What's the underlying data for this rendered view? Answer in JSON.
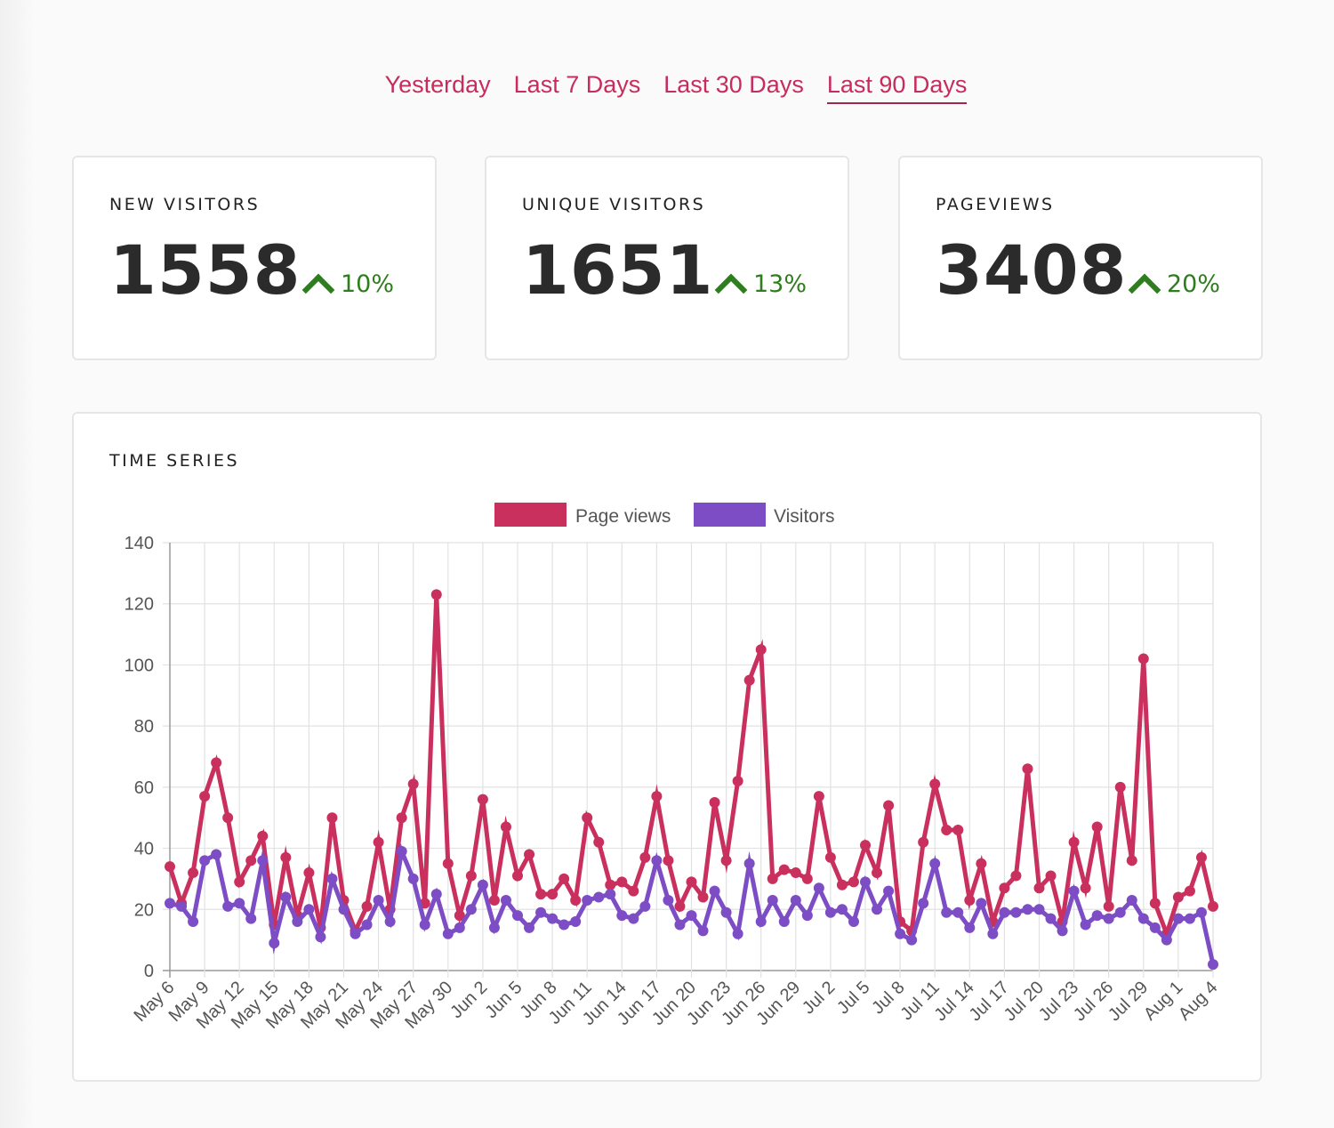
{
  "tabs": [
    {
      "label": "Yesterday",
      "active": false
    },
    {
      "label": "Last 7 Days",
      "active": false
    },
    {
      "label": "Last 30 Days",
      "active": false
    },
    {
      "label": "Last 90 Days",
      "active": true
    }
  ],
  "stats": [
    {
      "label": "NEW VISITORS",
      "value": "1558",
      "change": "10%",
      "trend_icon": "chevron-up-icon"
    },
    {
      "label": "UNIQUE VISITORS",
      "value": "1651",
      "change": "13%",
      "trend_icon": "chevron-up-icon"
    },
    {
      "label": "PAGEVIEWS",
      "value": "3408",
      "change": "20%",
      "trend_icon": "chevron-up-icon"
    }
  ],
  "colors": {
    "accent": "#c72c5c",
    "positive": "#2e7d1e",
    "page_views": "#c9305e",
    "visitors": "#7c4dc4"
  },
  "chart_card": {
    "title": "TIME SERIES"
  },
  "chart_data": {
    "type": "line",
    "grid": true,
    "legend_placement": "top",
    "ylim": [
      0,
      140
    ],
    "yticks": [
      0,
      20,
      40,
      60,
      80,
      100,
      120,
      140
    ],
    "x": [
      "May 6",
      "May 7",
      "May 8",
      "May 9",
      "May 10",
      "May 11",
      "May 12",
      "May 13",
      "May 14",
      "May 15",
      "May 16",
      "May 17",
      "May 18",
      "May 19",
      "May 20",
      "May 21",
      "May 22",
      "May 23",
      "May 24",
      "May 25",
      "May 26",
      "May 27",
      "May 28",
      "May 29",
      "May 30",
      "May 31",
      "Jun 1",
      "Jun 2",
      "Jun 3",
      "Jun 4",
      "Jun 5",
      "Jun 6",
      "Jun 7",
      "Jun 8",
      "Jun 9",
      "Jun 10",
      "Jun 11",
      "Jun 12",
      "Jun 13",
      "Jun 14",
      "Jun 15",
      "Jun 16",
      "Jun 17",
      "Jun 18",
      "Jun 19",
      "Jun 20",
      "Jun 21",
      "Jun 22",
      "Jun 23",
      "Jun 24",
      "Jun 25",
      "Jun 26",
      "Jun 27",
      "Jun 28",
      "Jun 29",
      "Jun 30",
      "Jul 1",
      "Jul 2",
      "Jul 3",
      "Jul 4",
      "Jul 5",
      "Jul 6",
      "Jul 7",
      "Jul 8",
      "Jul 9",
      "Jul 10",
      "Jul 11",
      "Jul 12",
      "Jul 13",
      "Jul 14",
      "Jul 15",
      "Jul 16",
      "Jul 17",
      "Jul 18",
      "Jul 19",
      "Jul 20",
      "Jul 21",
      "Jul 22",
      "Jul 23",
      "Jul 24",
      "Jul 25",
      "Jul 26",
      "Jul 27",
      "Jul 28",
      "Jul 29",
      "Jul 30",
      "Jul 31",
      "Aug 1",
      "Aug 2",
      "Aug 3",
      "Aug 4"
    ],
    "xtick_every": 3,
    "series": [
      {
        "name": "Page views",
        "color": "#c9305e",
        "values": [
          34,
          22,
          32,
          57,
          68,
          50,
          29,
          36,
          44,
          15,
          37,
          18,
          32,
          14,
          50,
          23,
          13,
          21,
          42,
          20,
          50,
          61,
          22,
          123,
          35,
          18,
          31,
          56,
          23,
          47,
          31,
          38,
          25,
          25,
          30,
          23,
          50,
          42,
          28,
          29,
          26,
          37,
          57,
          36,
          21,
          29,
          24,
          55,
          36,
          62,
          95,
          105,
          30,
          33,
          32,
          30,
          57,
          37,
          28,
          29,
          41,
          32,
          54,
          16,
          13,
          42,
          61,
          46,
          46,
          23,
          35,
          16,
          27,
          31,
          66,
          27,
          31,
          16,
          42,
          27,
          47,
          21,
          60,
          36,
          102,
          22,
          12,
          24,
          26,
          37,
          21
        ]
      },
      {
        "name": "Visitors",
        "color": "#7c4dc4",
        "values": [
          22,
          21,
          16,
          36,
          38,
          21,
          22,
          17,
          36,
          9,
          24,
          16,
          20,
          11,
          30,
          20,
          12,
          15,
          23,
          16,
          39,
          30,
          15,
          25,
          12,
          14,
          20,
          28,
          14,
          23,
          18,
          14,
          19,
          17,
          15,
          16,
          23,
          24,
          25,
          18,
          17,
          21,
          36,
          23,
          15,
          18,
          13,
          26,
          19,
          12,
          35,
          16,
          23,
          16,
          23,
          18,
          27,
          19,
          20,
          16,
          29,
          20,
          26,
          12,
          10,
          22,
          35,
          19,
          19,
          14,
          22,
          12,
          19,
          19,
          20,
          20,
          17,
          13,
          26,
          15,
          18,
          17,
          19,
          23,
          17,
          14,
          10,
          17,
          17,
          19,
          2
        ]
      }
    ]
  }
}
